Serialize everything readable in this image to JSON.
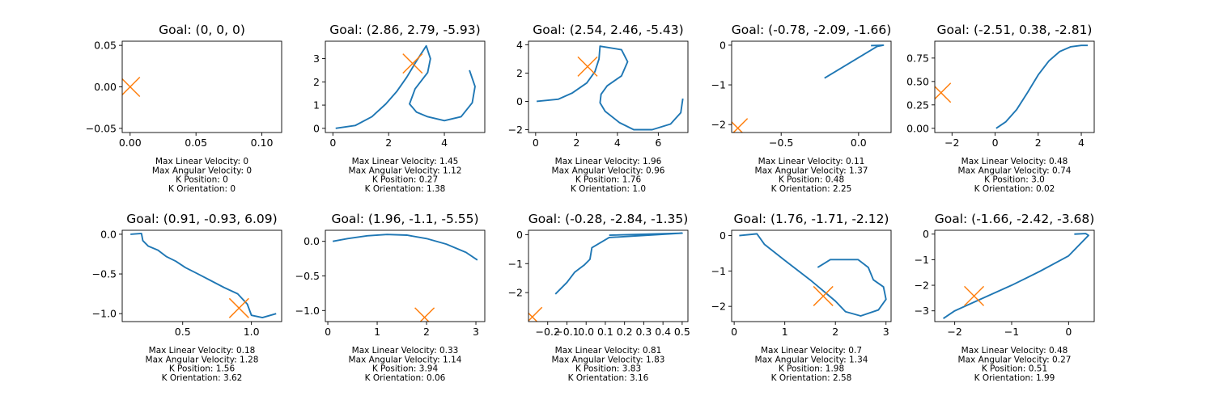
{
  "chart_data": [
    {
      "type": "line",
      "title": "Goal: (0, 0, 0)",
      "goal": {
        "x": 0,
        "y": 0
      },
      "xlim": [
        -0.006,
        0.115
      ],
      "ylim": [
        -0.055,
        0.055
      ],
      "xticks": [
        0.0,
        0.05,
        0.1
      ],
      "xtick_labels": [
        "0.00",
        "0.05",
        "0.10"
      ],
      "yticks": [
        -0.05,
        0.0,
        0.05
      ],
      "ytick_labels": [
        "−0.05",
        "0.00",
        "0.05"
      ],
      "path": [],
      "params": {
        "max_linear_velocity": "Max Linear Velocity: 0",
        "max_angular_velocity": "Max Angular Velocity: 0",
        "k_position": "K Position: 0",
        "k_orientation": "K Orientation: 0"
      }
    },
    {
      "type": "line",
      "title": "Goal: (2.86, 2.79, -5.93)",
      "goal": {
        "x": 2.86,
        "y": 2.79
      },
      "xlim": [
        -0.27,
        5.45
      ],
      "ylim": [
        -0.18,
        3.75
      ],
      "xticks": [
        0,
        2,
        4
      ],
      "xtick_labels": [
        "0",
        "2",
        "4"
      ],
      "yticks": [
        0,
        1,
        2,
        3
      ],
      "ytick_labels": [
        "0",
        "1",
        "2",
        "3"
      ],
      "path": [
        [
          0.1,
          0.0
        ],
        [
          0.8,
          0.12
        ],
        [
          1.4,
          0.5
        ],
        [
          1.9,
          1.05
        ],
        [
          2.3,
          1.6
        ],
        [
          2.65,
          2.2
        ],
        [
          3.0,
          2.9
        ],
        [
          3.35,
          3.55
        ],
        [
          3.5,
          3.0
        ],
        [
          3.4,
          2.4
        ],
        [
          2.95,
          1.7
        ],
        [
          2.75,
          1.05
        ],
        [
          3.0,
          0.7
        ],
        [
          3.4,
          0.5
        ],
        [
          4.0,
          0.33
        ],
        [
          4.6,
          0.5
        ],
        [
          5.0,
          1.1
        ],
        [
          5.1,
          1.8
        ],
        [
          4.9,
          2.5
        ]
      ],
      "params": {
        "max_linear_velocity": "Max Linear Velocity: 1.45",
        "max_angular_velocity": "Max Angular Velocity: 1.12",
        "k_position": "K Position: 0.27",
        "k_orientation": "K Orientation: 1.38"
      }
    },
    {
      "type": "line",
      "title": "Goal: (2.54, 2.46, -5.43)",
      "goal": {
        "x": 2.54,
        "y": 2.46
      },
      "xlim": [
        -0.35,
        7.45
      ],
      "ylim": [
        -2.2,
        4.25
      ],
      "xticks": [
        0,
        2,
        4,
        6
      ],
      "xtick_labels": [
        "0",
        "2",
        "4",
        "6"
      ],
      "yticks": [
        -2,
        0,
        2,
        4
      ],
      "ytick_labels": [
        "−2",
        "0",
        "2",
        "4"
      ],
      "path": [
        [
          0.05,
          0.0
        ],
        [
          1.1,
          0.15
        ],
        [
          1.8,
          0.6
        ],
        [
          2.5,
          1.3
        ],
        [
          2.9,
          2.1
        ],
        [
          3.1,
          3.0
        ],
        [
          3.15,
          3.9
        ],
        [
          4.2,
          3.65
        ],
        [
          4.5,
          2.8
        ],
        [
          4.2,
          1.8
        ],
        [
          3.5,
          1.1
        ],
        [
          3.2,
          0.5
        ],
        [
          3.15,
          -0.1
        ],
        [
          3.4,
          -0.7
        ],
        [
          4.1,
          -1.5
        ],
        [
          4.8,
          -2.0
        ],
        [
          5.7,
          -2.0
        ],
        [
          6.6,
          -1.6
        ],
        [
          7.1,
          -0.8
        ],
        [
          7.2,
          0.2
        ]
      ],
      "params": {
        "max_linear_velocity": "Max Linear Velocity: 1.96",
        "max_angular_velocity": "Max Angular Velocity: 0.96",
        "k_position": "K Position: 1.76",
        "k_orientation": "K Orientation: 1.0"
      }
    },
    {
      "type": "line",
      "title": "Goal: (-0.78, -2.09, -1.66)",
      "goal": {
        "x": -0.78,
        "y": -2.09
      },
      "xlim": [
        -0.82,
        0.21
      ],
      "ylim": [
        -2.2,
        0.1
      ],
      "xticks": [
        -0.5,
        0.0
      ],
      "xtick_labels": [
        "−0.5",
        "0.0"
      ],
      "yticks": [
        -2,
        -1,
        0
      ],
      "ytick_labels": [
        "−2",
        "−1",
        "0"
      ],
      "path": [
        [
          -0.22,
          -0.83
        ],
        [
          0.12,
          -0.03
        ],
        [
          0.16,
          0.0
        ],
        [
          0.08,
          -0.01
        ]
      ],
      "params": {
        "max_linear_velocity": "Max Linear Velocity: 0.11",
        "max_angular_velocity": "Max Angular Velocity: 1.37",
        "k_position": "K Position: 0.48",
        "k_orientation": "K Orientation: 2.25"
      }
    },
    {
      "type": "line",
      "title": "Goal: (-2.51, 0.38, -2.81)",
      "goal": {
        "x": -2.51,
        "y": 0.38
      },
      "xlim": [
        -2.8,
        4.6
      ],
      "ylim": [
        -0.045,
        0.93
      ],
      "xticks": [
        -2,
        0,
        2,
        4
      ],
      "xtick_labels": [
        "−2",
        "0",
        "2",
        "4"
      ],
      "yticks": [
        0.0,
        0.25,
        0.5,
        0.75
      ],
      "ytick_labels": [
        "0.00",
        "0.25",
        "0.50",
        "0.75"
      ],
      "path": [
        [
          0.05,
          0.0
        ],
        [
          0.5,
          0.07
        ],
        [
          1.0,
          0.2
        ],
        [
          1.5,
          0.38
        ],
        [
          2.0,
          0.57
        ],
        [
          2.5,
          0.72
        ],
        [
          3.0,
          0.82
        ],
        [
          3.5,
          0.87
        ],
        [
          4.0,
          0.885
        ],
        [
          4.3,
          0.885
        ]
      ],
      "params": {
        "max_linear_velocity": "Max Linear Velocity: 0.48",
        "max_angular_velocity": "Max Angular Velocity: 0.74",
        "k_position": "K Position: 3.0",
        "k_orientation": "K Orientation: 0.02"
      }
    },
    {
      "type": "line",
      "title": "Goal: (0.91, -0.93, 6.09)",
      "goal": {
        "x": 0.91,
        "y": -0.93
      },
      "xlim": [
        0.06,
        1.22
      ],
      "ylim": [
        -1.1,
        0.05
      ],
      "xticks": [
        0.5,
        1.0
      ],
      "xtick_labels": [
        "0.5",
        "1.0"
      ],
      "yticks": [
        -1.0,
        -0.5,
        0.0
      ],
      "ytick_labels": [
        "−1.0",
        "−0.5",
        "0.0"
      ],
      "path": [
        [
          0.12,
          0.0
        ],
        [
          0.2,
          0.01
        ],
        [
          0.21,
          -0.08
        ],
        [
          0.25,
          -0.15
        ],
        [
          0.32,
          -0.2
        ],
        [
          0.38,
          -0.28
        ],
        [
          0.45,
          -0.34
        ],
        [
          0.52,
          -0.42
        ],
        [
          0.6,
          -0.49
        ],
        [
          0.7,
          -0.58
        ],
        [
          0.8,
          -0.67
        ],
        [
          0.9,
          -0.75
        ],
        [
          0.97,
          -0.88
        ],
        [
          1.0,
          -1.02
        ],
        [
          1.08,
          -1.05
        ],
        [
          1.18,
          -1.0
        ]
      ],
      "params": {
        "max_linear_velocity": "Max Linear Velocity: 0.18",
        "max_angular_velocity": "Max Angular Velocity: 1.28",
        "k_position": "K Position: 1.56",
        "k_orientation": "K Orientation: 3.62"
      }
    },
    {
      "type": "line",
      "title": "Goal: (1.96, -1.1, -5.55)",
      "goal": {
        "x": 1.96,
        "y": -1.1
      },
      "xlim": [
        -0.05,
        3.18
      ],
      "ylim": [
        -1.16,
        0.16
      ],
      "xticks": [
        0,
        1,
        2,
        3
      ],
      "xtick_labels": [
        "0",
        "1",
        "2",
        "3"
      ],
      "yticks": [
        -1.0,
        -0.5,
        0.0
      ],
      "ytick_labels": [
        "−1.0",
        "−0.5",
        "0.0"
      ],
      "path": [
        [
          0.1,
          0.0
        ],
        [
          0.4,
          0.04
        ],
        [
          0.8,
          0.08
        ],
        [
          1.2,
          0.1
        ],
        [
          1.6,
          0.09
        ],
        [
          2.0,
          0.04
        ],
        [
          2.4,
          -0.04
        ],
        [
          2.8,
          -0.16
        ],
        [
          3.03,
          -0.27
        ]
      ],
      "params": {
        "max_linear_velocity": "Max Linear Velocity: 0.33",
        "max_angular_velocity": "Max Angular Velocity: 1.14",
        "k_position": "K Position: 3.94",
        "k_orientation": "K Orientation: 0.06"
      }
    },
    {
      "type": "line",
      "title": "Goal: (-0.28, -2.84, -1.35)",
      "goal": {
        "x": -0.28,
        "y": -2.84
      },
      "xlim": [
        -0.3,
        0.53
      ],
      "ylim": [
        -3.0,
        0.15
      ],
      "xticks": [
        -0.2,
        -0.1,
        0.0,
        0.1,
        0.2,
        0.3,
        0.4,
        0.5
      ],
      "xtick_labels": [
        "−0.2",
        "−0.1",
        "0.0",
        "0.1",
        "0.2",
        "0.3",
        "0.4",
        "0.5"
      ],
      "yticks": [
        -2,
        -1,
        0
      ],
      "ytick_labels": [
        "−2",
        "−1",
        "0"
      ],
      "path": [
        [
          -0.16,
          -2.05
        ],
        [
          -0.1,
          -1.65
        ],
        [
          -0.06,
          -1.3
        ],
        [
          -0.01,
          -1.05
        ],
        [
          0.02,
          -0.85
        ],
        [
          0.03,
          -0.45
        ],
        [
          0.12,
          -0.1
        ],
        [
          0.5,
          0.05
        ],
        [
          0.12,
          -0.02
        ]
      ],
      "params": {
        "max_linear_velocity": "Max Linear Velocity: 0.81",
        "max_angular_velocity": "Max Angular Velocity: 1.83",
        "k_position": "K Position: 3.83",
        "k_orientation": "K Orientation: 3.16"
      }
    },
    {
      "type": "line",
      "title": "Goal: (1.76, -1.71, -2.12)",
      "goal": {
        "x": 1.76,
        "y": -1.71
      },
      "xlim": [
        -0.05,
        3.1
      ],
      "ylim": [
        -2.43,
        0.15
      ],
      "xticks": [
        0,
        1,
        2,
        3
      ],
      "xtick_labels": [
        "0",
        "1",
        "2",
        "3"
      ],
      "yticks": [
        -2,
        -1,
        0
      ],
      "ytick_labels": [
        "−2",
        "−1",
        "0"
      ],
      "path": [
        [
          0.1,
          0.0
        ],
        [
          0.45,
          0.05
        ],
        [
          0.6,
          -0.25
        ],
        [
          1.0,
          -0.7
        ],
        [
          1.5,
          -1.25
        ],
        [
          2.0,
          -1.85
        ],
        [
          2.2,
          -2.15
        ],
        [
          2.5,
          -2.27
        ],
        [
          2.85,
          -2.1
        ],
        [
          3.0,
          -1.8
        ],
        [
          2.95,
          -1.45
        ],
        [
          2.75,
          -1.25
        ],
        [
          2.65,
          -0.9
        ],
        [
          2.45,
          -0.68
        ],
        [
          2.1,
          -0.68
        ],
        [
          1.9,
          -0.68
        ],
        [
          1.65,
          -0.9
        ]
      ],
      "params": {
        "max_linear_velocity": "Max Linear Velocity: 0.7",
        "max_angular_velocity": "Max Angular Velocity: 1.34",
        "k_position": "K Position: 1.98",
        "k_orientation": "K Orientation: 2.58"
      }
    },
    {
      "type": "line",
      "title": "Goal: (-1.66, -2.42, -3.68)",
      "goal": {
        "x": -1.66,
        "y": -2.42
      },
      "xlim": [
        -2.35,
        0.45
      ],
      "ylim": [
        -3.42,
        0.15
      ],
      "xticks": [
        -2,
        -1,
        0
      ],
      "xtick_labels": [
        "−2",
        "−1",
        "0"
      ],
      "yticks": [
        -3,
        -2,
        -1,
        0
      ],
      "ytick_labels": [
        "−3",
        "−2",
        "−1",
        "0"
      ],
      "path": [
        [
          -2.2,
          -3.3
        ],
        [
          -2.0,
          -3.0
        ],
        [
          -1.6,
          -2.6
        ],
        [
          -1.0,
          -2.0
        ],
        [
          -0.5,
          -1.45
        ],
        [
          0.0,
          -0.85
        ],
        [
          0.35,
          -0.05
        ],
        [
          0.3,
          0.02
        ],
        [
          0.1,
          0.0
        ]
      ],
      "params": {
        "max_linear_velocity": "Max Linear Velocity: 0.48",
        "max_angular_velocity": "Max Angular Velocity: 0.27",
        "k_position": "K Position: 0.51",
        "k_orientation": "K Orientation: 1.99"
      }
    }
  ]
}
